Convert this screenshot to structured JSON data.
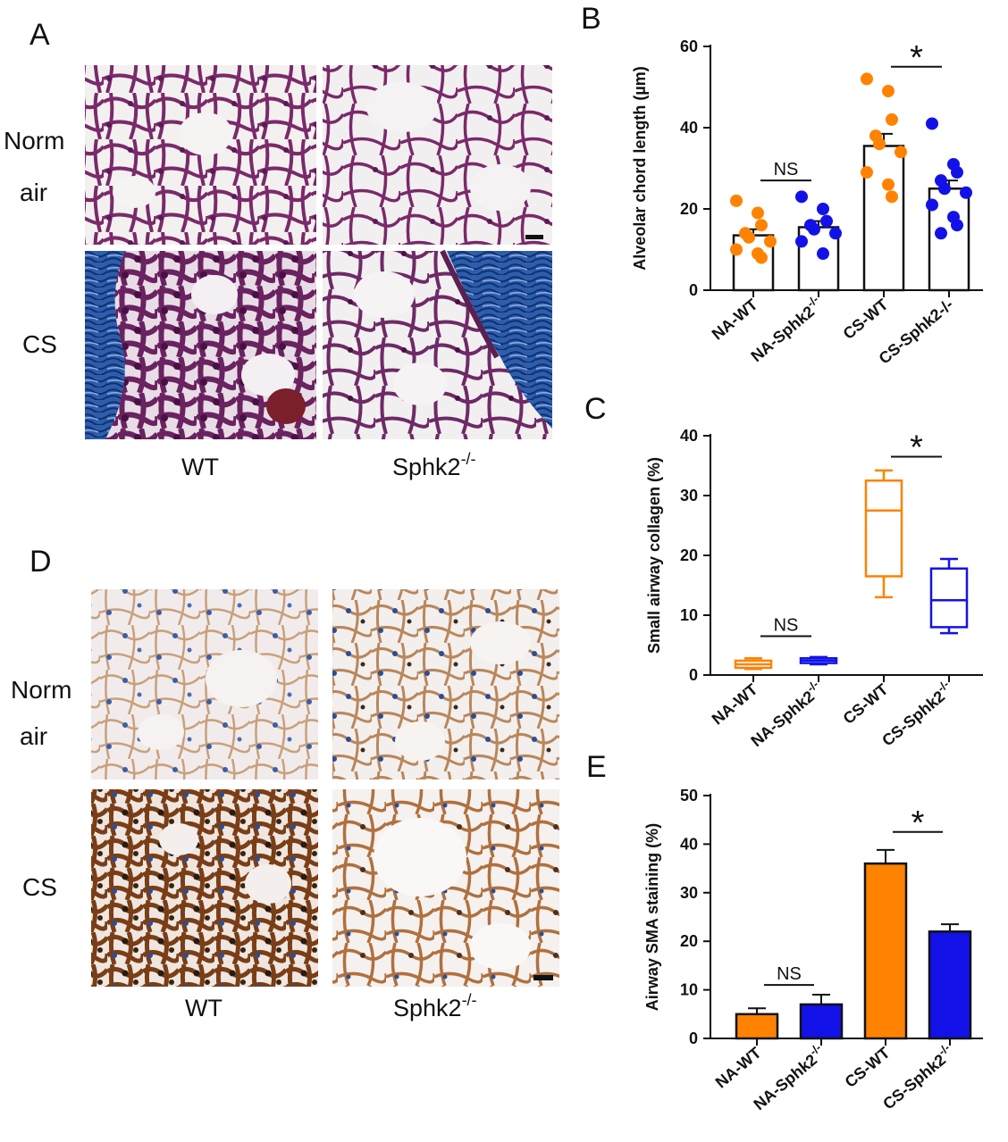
{
  "panels": {
    "A": {
      "letter": "A",
      "row_labels": [
        [
          "Norm",
          "air"
        ],
        [
          "CS"
        ]
      ],
      "col_labels": [
        {
          "main": "WT",
          "sup": ""
        },
        {
          "main": "Sphk2",
          "sup": "-/-"
        }
      ]
    },
    "D": {
      "letter": "D",
      "row_labels": [
        [
          "Norm",
          "air"
        ],
        [
          "CS"
        ]
      ],
      "col_labels": [
        {
          "main": "WT",
          "sup": ""
        },
        {
          "main": "Sphk2",
          "sup": "-/-"
        }
      ]
    }
  },
  "colors": {
    "orange": "#ff8200",
    "blue": "#1212e8",
    "stain_purple": "#7a2a6a",
    "stain_blue": "#2f5ea8",
    "stain_brown": "#8a4a1e"
  },
  "chart_data": [
    {
      "letter": "B",
      "type": "bar",
      "subtype": "bar-with-points",
      "ylabel": "Alveolar chord length (µm)",
      "ylim": [
        0,
        60
      ],
      "yticks": [
        0,
        20,
        40,
        60
      ],
      "categories": [
        {
          "main": "NA-WT",
          "sup": ""
        },
        {
          "main": "NA-Sphk2",
          "sup": "-/-"
        },
        {
          "main": "CS-WT",
          "sup": ""
        },
        {
          "main": "CS-Sphk2-/-",
          "sup": ""
        }
      ],
      "bar_fill": "none",
      "values": [
        13.5,
        15.5,
        35.5,
        25
      ],
      "errors": [
        1.5,
        1.5,
        3,
        2
      ],
      "point_colors": [
        "#ff8200",
        "#1212e8",
        "#ff8200",
        "#1212e8"
      ],
      "points": [
        [
          22,
          19,
          16,
          14,
          13,
          12,
          10,
          9,
          8
        ],
        [
          23,
          20,
          17,
          16,
          15,
          14,
          12,
          9
        ],
        [
          52,
          49,
          42,
          38,
          36,
          34,
          29,
          26,
          23
        ],
        [
          41,
          31,
          29,
          27,
          25,
          24,
          21,
          18,
          16,
          14
        ]
      ],
      "annotations": [
        {
          "text": "NS",
          "between": [
            0,
            1
          ],
          "y": 27
        },
        {
          "text": "*",
          "between": [
            2,
            3
          ],
          "y": 55
        }
      ]
    },
    {
      "letter": "C",
      "type": "box",
      "ylabel": "Small airway collagen (%)",
      "ylim": [
        0,
        40
      ],
      "yticks": [
        0,
        10,
        20,
        30,
        40
      ],
      "categories": [
        {
          "main": "NA-WT",
          "sup": ""
        },
        {
          "main": "NA-Sphk2",
          "sup": "-/-"
        },
        {
          "main": "CS-WT",
          "sup": ""
        },
        {
          "main": "CS-Sphk2",
          "sup": "-/-"
        }
      ],
      "box_colors": [
        "#ff8200",
        "#1212e8",
        "#ff8200",
        "#1212e8"
      ],
      "boxes": [
        {
          "min": 1,
          "q1": 1.2,
          "median": 1.8,
          "q3": 2.4,
          "max": 2.8
        },
        {
          "min": 1.8,
          "q1": 2.0,
          "median": 2.4,
          "q3": 2.8,
          "max": 3.0
        },
        {
          "min": 13,
          "q1": 16.5,
          "median": 27.5,
          "q3": 32.5,
          "max": 34.2
        },
        {
          "min": 7,
          "q1": 8,
          "median": 12.5,
          "q3": 17.8,
          "max": 19.4
        }
      ],
      "annotations": [
        {
          "text": "NS",
          "between": [
            0,
            1
          ],
          "y": 6.5
        },
        {
          "text": "*",
          "between": [
            2,
            3
          ],
          "y": 36.5
        }
      ]
    },
    {
      "letter": "E",
      "type": "bar",
      "ylabel": "Airway SMA staining (%)",
      "ylim": [
        0,
        50
      ],
      "yticks": [
        0,
        10,
        20,
        30,
        40,
        50
      ],
      "categories": [
        {
          "main": "NA-WT",
          "sup": ""
        },
        {
          "main": "NA-Sphk2",
          "sup": "-/-"
        },
        {
          "main": "CS-WT",
          "sup": ""
        },
        {
          "main": "CS-Sphk2",
          "sup": "-/-"
        }
      ],
      "bar_colors": [
        "#ff8200",
        "#1212e8",
        "#ff8200",
        "#1212e8"
      ],
      "values": [
        5,
        7,
        36,
        22
      ],
      "errors": [
        1.2,
        2,
        2.8,
        1.5
      ],
      "annotations": [
        {
          "text": "NS",
          "between": [
            0,
            1
          ],
          "y": 11
        },
        {
          "text": "*",
          "between": [
            2,
            3
          ],
          "y": 42.5
        }
      ]
    }
  ]
}
